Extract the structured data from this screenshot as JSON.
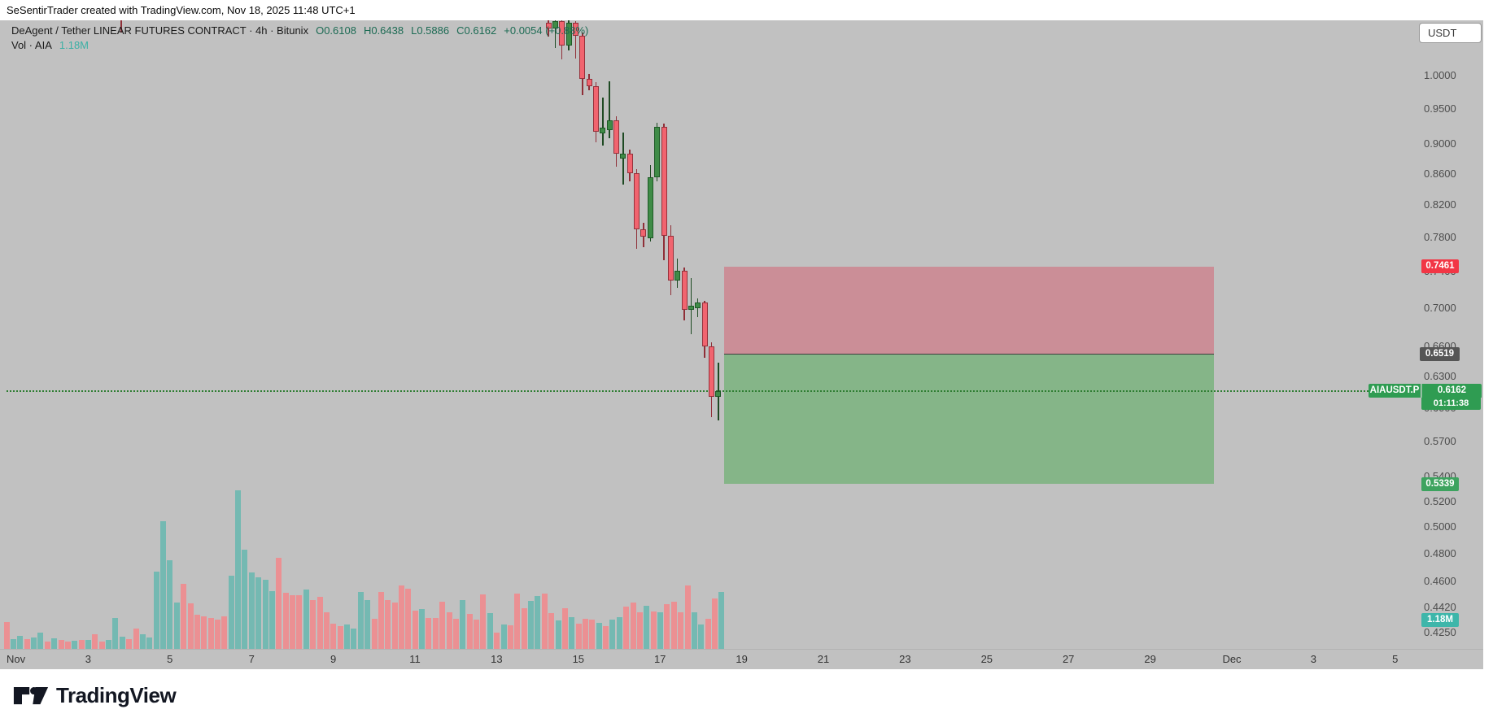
{
  "header": {
    "attribution": "SeSentirTrader created with TradingView.com, Nov 18, 2025 11:48 UTC+1"
  },
  "legend": {
    "title": "DeAgent / Tether LINEAR FUTURES CONTRACT · 4h · Bitunix",
    "open": "O0.6108",
    "high": "H0.6438",
    "low": "L0.5886",
    "close": "C0.6162",
    "change": "+0.0054 (+0.88%)",
    "vol_label": "Vol · AIA",
    "vol_value": "1.18M"
  },
  "price_axis": {
    "currency_button": "USDT",
    "ticks": [
      "1.0000",
      "0.9500",
      "0.9000",
      "0.8600",
      "0.8200",
      "0.7800",
      "0.7400",
      "0.7000",
      "0.6600",
      "0.6300",
      "0.6000",
      "0.5700",
      "0.5400",
      "0.5200",
      "0.5000",
      "0.4800",
      "0.4600",
      "0.4420",
      "0.4250"
    ],
    "badges": {
      "stop_label": "0.7461",
      "entry_label": "0.6519",
      "ticker": "AIAUSDT.P",
      "last_price": "0.6162",
      "countdown": "01:11:38",
      "target_label": "0.5339",
      "volume_label": "1.18M"
    }
  },
  "time_axis": {
    "labels": [
      {
        "text": "Nov",
        "day": 0
      },
      {
        "text": "3",
        "day": 2
      },
      {
        "text": "5",
        "day": 4
      },
      {
        "text": "7",
        "day": 6
      },
      {
        "text": "9",
        "day": 8
      },
      {
        "text": "11",
        "day": 10
      },
      {
        "text": "13",
        "day": 12
      },
      {
        "text": "15",
        "day": 14
      },
      {
        "text": "17",
        "day": 16
      },
      {
        "text": "19",
        "day": 18
      },
      {
        "text": "21",
        "day": 20
      },
      {
        "text": "23",
        "day": 22
      },
      {
        "text": "25",
        "day": 24
      },
      {
        "text": "27",
        "day": 26
      },
      {
        "text": "29",
        "day": 28
      },
      {
        "text": "Dec",
        "day": 30
      },
      {
        "text": "3",
        "day": 32
      },
      {
        "text": "5",
        "day": 34
      }
    ]
  },
  "footer": {
    "brand": "TradingView"
  },
  "chart_data": {
    "type": "candlestick",
    "symbol": "AIAUSDT.P",
    "description": "DeAgent / Tether LINEAR FUTURES CONTRACT",
    "exchange": "Bitunix",
    "interval": "4h",
    "scale": "log",
    "currency": "USDT",
    "current_bar": {
      "open": 0.6108,
      "high": 0.6438,
      "low": 0.5886,
      "close": 0.6162,
      "change": 0.0054,
      "change_pct": 0.88,
      "volume": "1.18M"
    },
    "price_line": 0.6162,
    "position_tool": {
      "type": "short",
      "stop": 0.7461,
      "entry": 0.6519,
      "target": 0.5339
    },
    "candles_format": [
      "open",
      "high",
      "low",
      "close"
    ],
    "candles": [
      [
        1.085,
        1.0895,
        1.062,
        1.075
      ],
      [
        1.075,
        1.0895,
        1.043,
        1.087
      ],
      [
        1.087,
        1.0895,
        1.025,
        1.047
      ],
      [
        1.047,
        1.0895,
        1.04,
        1.085
      ],
      [
        1.084,
        1.087,
        1.027,
        1.063
      ],
      [
        1.063,
        1.068,
        0.97,
        0.995
      ],
      [
        0.995,
        1.002,
        0.978,
        0.984
      ],
      [
        0.984,
        0.99,
        0.903,
        0.917
      ],
      [
        0.915,
        0.967,
        0.898,
        0.923
      ],
      [
        0.92,
        0.991,
        0.908,
        0.934
      ],
      [
        0.934,
        0.94,
        0.87,
        0.887
      ],
      [
        0.88,
        0.916,
        0.846,
        0.887
      ],
      [
        0.887,
        0.893,
        0.85,
        0.861
      ],
      [
        0.861,
        0.866,
        0.766,
        0.79
      ],
      [
        0.79,
        0.798,
        0.768,
        0.781
      ],
      [
        0.779,
        0.872,
        0.775,
        0.855
      ],
      [
        0.855,
        0.93,
        0.85,
        0.924
      ],
      [
        0.924,
        0.929,
        0.753,
        0.782
      ],
      [
        0.782,
        0.795,
        0.714,
        0.73
      ],
      [
        0.73,
        0.755,
        0.722,
        0.741
      ],
      [
        0.741,
        0.745,
        0.687,
        0.698
      ],
      [
        0.698,
        0.733,
        0.672,
        0.702
      ],
      [
        0.7,
        0.71,
        0.69,
        0.706
      ],
      [
        0.706,
        0.708,
        0.648,
        0.66
      ],
      [
        0.66,
        0.664,
        0.592,
        0.6108
      ],
      [
        0.6108,
        0.6438,
        0.5886,
        0.6162
      ]
    ],
    "volume_bars": [
      [
        33,
        0
      ],
      [
        12,
        1
      ],
      [
        16,
        1
      ],
      [
        12,
        0
      ],
      [
        14,
        1
      ],
      [
        20,
        1
      ],
      [
        9,
        0
      ],
      [
        13,
        1
      ],
      [
        11,
        0
      ],
      [
        9,
        0
      ],
      [
        10,
        1
      ],
      [
        11,
        0
      ],
      [
        11,
        1
      ],
      [
        18,
        0
      ],
      [
        9,
        0
      ],
      [
        11,
        1
      ],
      [
        38,
        1
      ],
      [
        15,
        1
      ],
      [
        12,
        0
      ],
      [
        25,
        0
      ],
      [
        18,
        1
      ],
      [
        14,
        1
      ],
      [
        95,
        1
      ],
      [
        157,
        1
      ],
      [
        109,
        1
      ],
      [
        57,
        1
      ],
      [
        80,
        0
      ],
      [
        56,
        0
      ],
      [
        42,
        0
      ],
      [
        40,
        0
      ],
      [
        38,
        0
      ],
      [
        36,
        0
      ],
      [
        40,
        0
      ],
      [
        90,
        1
      ],
      [
        195,
        1
      ],
      [
        122,
        1
      ],
      [
        94,
        1
      ],
      [
        88,
        1
      ],
      [
        85,
        1
      ],
      [
        71,
        1
      ],
      [
        112,
        0
      ],
      [
        69,
        0
      ],
      [
        66,
        0
      ],
      [
        66,
        0
      ],
      [
        73,
        1
      ],
      [
        60,
        0
      ],
      [
        64,
        0
      ],
      [
        45,
        0
      ],
      [
        31,
        0
      ],
      [
        28,
        0
      ],
      [
        30,
        1
      ],
      [
        25,
        1
      ],
      [
        70,
        1
      ],
      [
        60,
        1
      ],
      [
        37,
        0
      ],
      [
        70,
        0
      ],
      [
        60,
        0
      ],
      [
        57,
        0
      ],
      [
        78,
        0
      ],
      [
        74,
        0
      ],
      [
        47,
        0
      ],
      [
        49,
        1
      ],
      [
        38,
        0
      ],
      [
        38,
        0
      ],
      [
        58,
        0
      ],
      [
        45,
        0
      ],
      [
        37,
        0
      ],
      [
        60,
        1
      ],
      [
        43,
        0
      ],
      [
        36,
        0
      ],
      [
        67,
        0
      ],
      [
        44,
        1
      ],
      [
        20,
        0
      ],
      [
        30,
        1
      ],
      [
        29,
        0
      ],
      [
        68,
        0
      ],
      [
        50,
        0
      ],
      [
        59,
        1
      ],
      [
        65,
        1
      ],
      [
        68,
        0
      ],
      [
        44,
        0
      ],
      [
        35,
        1
      ],
      [
        50,
        0
      ],
      [
        39,
        1
      ],
      [
        31,
        0
      ],
      [
        37,
        0
      ],
      [
        36,
        0
      ],
      [
        32,
        1
      ],
      [
        28,
        0
      ],
      [
        36,
        1
      ],
      [
        39,
        1
      ],
      [
        52,
        0
      ],
      [
        57,
        0
      ],
      [
        45,
        0
      ],
      [
        53,
        1
      ],
      [
        46,
        0
      ],
      [
        45,
        1
      ],
      [
        55,
        0
      ],
      [
        58,
        0
      ],
      [
        45,
        0
      ],
      [
        78,
        0
      ],
      [
        45,
        1
      ],
      [
        30,
        1
      ],
      [
        37,
        0
      ],
      [
        62,
        0
      ],
      [
        70,
        1
      ]
    ],
    "offscreen_wick": {
      "day": 2.79,
      "from_price": 1.089,
      "to_price": 1.069
    }
  },
  "colors": {
    "up_body": "#3f8b47",
    "up_border": "#1e5a26",
    "up_wick": "#1e4a23",
    "down_body": "#f1646f",
    "down_border": "#96313b",
    "down_wick": "#8f2f38",
    "vol_up": "#74b9b2",
    "vol_down": "#eb9093",
    "zone_loss": "#cb8e97",
    "zone_profit": "#85b588",
    "zone_divider": "#3e3e3e",
    "price_line_color": "#2e7d32",
    "badge_stop": "#f23645",
    "badge_entry": "#555555",
    "badge_last": "#2f9c52",
    "badge_target": "#3da35f",
    "badge_volume": "#3eb6aa",
    "legend_value": "#1d6b54",
    "vol_value_color": "#3cb0a5"
  }
}
